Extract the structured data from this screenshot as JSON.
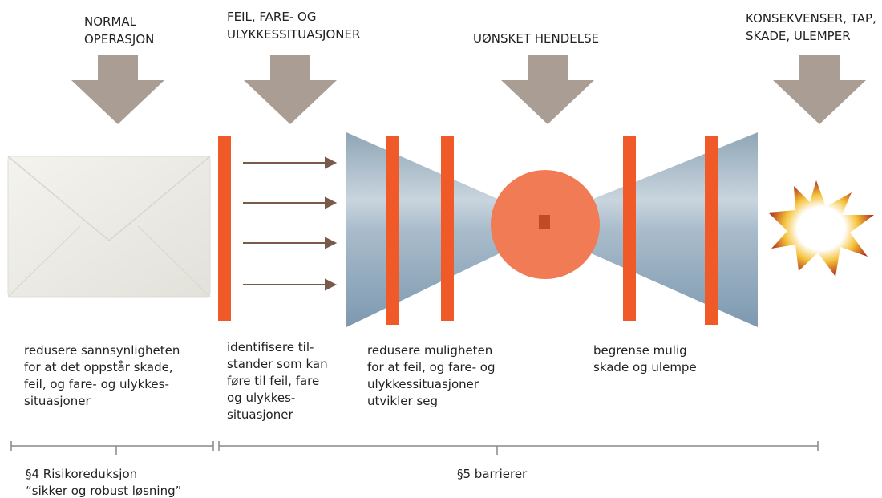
{
  "headers": [
    {
      "lines": [
        "NORMAL",
        "OPERASJON"
      ]
    },
    {
      "lines": [
        "FEIL, FARE- OG",
        "ULYKKESSITUASJONER"
      ]
    },
    {
      "lines": [
        "UØNSKET HENDELSE"
      ]
    },
    {
      "lines": [
        "KONSEKVENSER, TAP,",
        "SKADE, ULEMPER"
      ]
    }
  ],
  "descriptions": [
    {
      "lines": [
        "redusere sannsynligheten",
        "for at det oppstår skade,",
        "feil, og fare- og ulykkes-",
        "situasjoner"
      ]
    },
    {
      "lines": [
        "identifisere til-",
        "stander som kan",
        "føre til feil, fare",
        "og ulykkes-",
        "situasjoner"
      ]
    },
    {
      "lines": [
        "redusere muligheten",
        "for at feil, og fare- og",
        "ulykkessituasjoner",
        "utvikler seg"
      ]
    },
    {
      "lines": [
        "begrense mulig",
        "skade og ulempe"
      ]
    }
  ],
  "timeline": [
    {
      "lines": [
        "§4  Risikoreduksjon",
        "“sikker og robust løsning”"
      ]
    },
    {
      "lines": [
        "§5 barrierer"
      ]
    }
  ]
}
